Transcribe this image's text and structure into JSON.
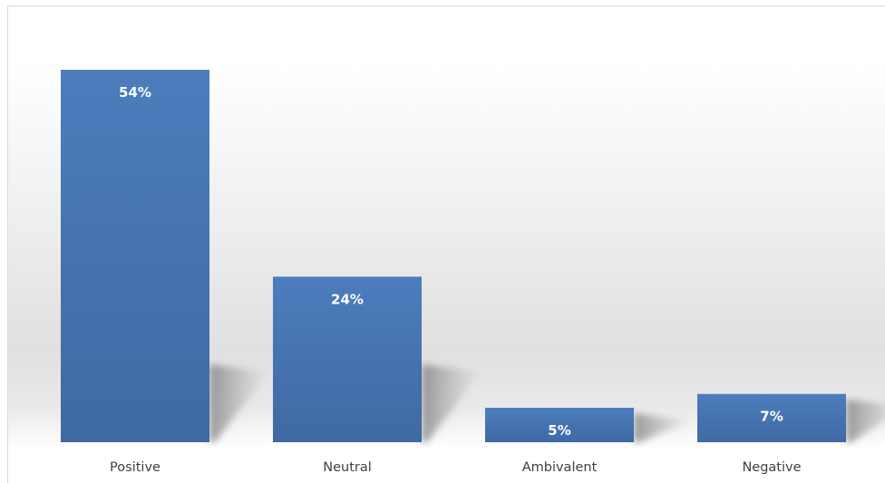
{
  "chart_data": {
    "type": "bar",
    "categories": [
      "Positive",
      "Neutral",
      "Ambivalent",
      "Negative"
    ],
    "values": [
      54,
      24,
      5,
      7
    ],
    "data_labels": [
      "54%",
      "24%",
      "5%",
      "7%"
    ],
    "ylim": [
      0,
      60
    ],
    "grid": false,
    "legend": "none",
    "colors": {
      "bar": "#4a7ab9",
      "bar_dark": "#3f69a4",
      "label": "#ffffff",
      "tick": "#404040"
    }
  }
}
